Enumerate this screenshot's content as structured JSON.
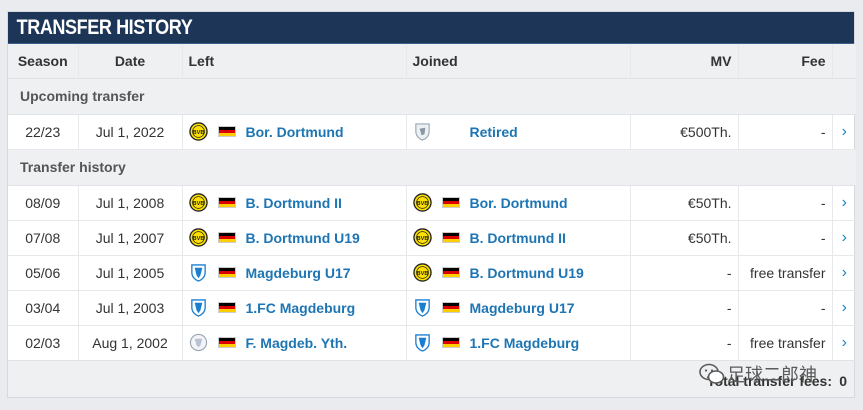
{
  "title": "TRANSFER HISTORY",
  "columns": {
    "season": "Season",
    "date": "Date",
    "left": "Left",
    "joined": "Joined",
    "mv": "MV",
    "fee": "Fee"
  },
  "sections": {
    "upcoming": "Upcoming transfer",
    "history": "Transfer history"
  },
  "upcoming_rows": [
    {
      "season": "22/23",
      "date": "Jul 1, 2022",
      "left_crest": "bvb-crest-icon",
      "left_club": "Bor. Dortmund",
      "joined_crest": "retired-icon",
      "joined_club": "Retired",
      "mv": "€500Th.",
      "fee": "-",
      "arrow": "›"
    }
  ],
  "history_rows": [
    {
      "season": "08/09",
      "date": "Jul 1, 2008",
      "left_crest": "bvb-crest-icon",
      "left_club": "B. Dortmund II",
      "joined_crest": "bvb-crest-icon",
      "joined_club": "Bor. Dortmund",
      "mv": "€50Th.",
      "fee": "-",
      "arrow": "›"
    },
    {
      "season": "07/08",
      "date": "Jul 1, 2007",
      "left_crest": "bvb-crest-icon",
      "left_club": "B. Dortmund U19",
      "joined_crest": "bvb-crest-icon",
      "joined_club": "B. Dortmund II",
      "mv": "€50Th.",
      "fee": "-",
      "arrow": "›"
    },
    {
      "season": "05/06",
      "date": "Jul 1, 2005",
      "left_crest": "magdeburg-crest-icon",
      "left_club": "Magdeburg U17",
      "joined_crest": "bvb-crest-icon",
      "joined_club": "B. Dortmund U19",
      "mv": "-",
      "fee": "free transfer",
      "arrow": "›"
    },
    {
      "season": "03/04",
      "date": "Jul 1, 2003",
      "left_crest": "magdeburg-crest-icon",
      "left_club": "1.FC Magdeburg",
      "joined_crest": "magdeburg-crest-icon",
      "joined_club": "Magdeburg U17",
      "mv": "-",
      "fee": "-",
      "arrow": "›"
    },
    {
      "season": "02/03",
      "date": "Aug 1, 2002",
      "left_crest": "magdeburg-youth-crest-icon",
      "left_club": "F. Magdeb. Yth.",
      "joined_crest": "magdeburg-crest-icon",
      "joined_club": "1.FC Magdeburg",
      "mv": "-",
      "fee": "free transfer",
      "arrow": "›"
    }
  ],
  "footer": {
    "label": "Total transfer fees:",
    "value": "0"
  },
  "watermark": "足球二郎神",
  "colors": {
    "header_bg": "#1d3557",
    "link": "#1d75b3",
    "arrow": "#1a86c8",
    "section_bg": "#eef0f2"
  }
}
